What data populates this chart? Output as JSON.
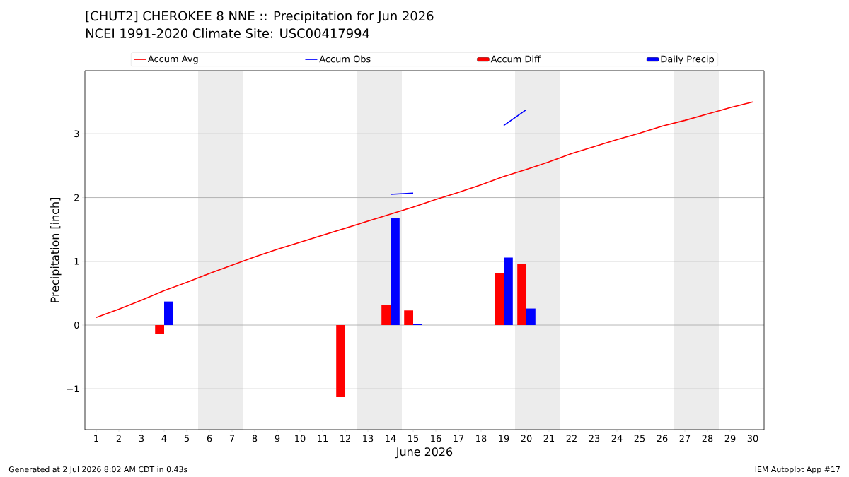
{
  "chart_data": {
    "type": "bar",
    "title": "[CHUT2] CHEROKEE 8 NNE :: Precipitation for Jun 2026",
    "subtitle": "NCEI 1991-2020 Climate Site: USC00417994",
    "xlabel": "June 2026",
    "ylabel": "Precipitation [inch]",
    "x": [
      1,
      2,
      3,
      4,
      5,
      6,
      7,
      8,
      9,
      10,
      11,
      12,
      13,
      14,
      15,
      16,
      17,
      18,
      19,
      20,
      21,
      22,
      23,
      24,
      25,
      26,
      27,
      28,
      29,
      30
    ],
    "series": [
      {
        "name": "Accum Avg",
        "type": "line",
        "color": "#ff0000",
        "values": [
          0.12,
          0.25,
          0.39,
          0.54,
          0.67,
          0.81,
          0.94,
          1.07,
          1.19,
          1.3,
          1.41,
          1.52,
          1.63,
          1.74,
          1.85,
          1.97,
          2.08,
          2.2,
          2.33,
          2.44,
          2.56,
          2.69,
          2.8,
          2.91,
          3.01,
          3.12,
          3.21,
          3.31,
          3.41,
          3.5
        ]
      },
      {
        "name": "Accum Obs",
        "type": "line",
        "color": "#0000ff",
        "values": [
          null,
          null,
          null,
          null,
          null,
          null,
          null,
          null,
          null,
          null,
          null,
          null,
          null,
          2.05,
          2.07,
          null,
          null,
          null,
          3.13,
          3.38,
          null,
          null,
          null,
          null,
          null,
          null,
          null,
          null,
          null,
          null
        ]
      },
      {
        "name": "Accum Diff",
        "color": "#ff0000",
        "values": [
          null,
          null,
          null,
          -0.14,
          null,
          null,
          null,
          null,
          null,
          null,
          null,
          -1.13,
          null,
          0.32,
          0.23,
          null,
          null,
          null,
          0.82,
          0.96,
          null,
          null,
          null,
          null,
          null,
          null,
          null,
          null,
          null,
          null
        ]
      },
      {
        "name": "Daily Precip",
        "color": "#0000ff",
        "values": [
          null,
          null,
          null,
          0.37,
          null,
          null,
          null,
          null,
          null,
          null,
          null,
          null,
          null,
          1.68,
          0.02,
          null,
          null,
          null,
          1.06,
          0.26,
          null,
          null,
          null,
          null,
          null,
          null,
          null,
          null,
          null,
          null
        ]
      }
    ],
    "xlim": [
      0.5,
      30.5
    ],
    "xticks": [
      1,
      2,
      3,
      4,
      5,
      6,
      7,
      8,
      9,
      10,
      11,
      12,
      13,
      14,
      15,
      16,
      17,
      18,
      19,
      20,
      21,
      22,
      23,
      24,
      25,
      26,
      27,
      28,
      29,
      30
    ],
    "ylim": [
      -1.64,
      3.99
    ],
    "yticks": [
      {
        "value": -1,
        "label": "−1"
      },
      0,
      1,
      2,
      3
    ],
    "bands": [
      {
        "axis": "x",
        "from": 5.5,
        "to": 7.5,
        "color": "#ececec"
      },
      {
        "axis": "x",
        "from": 12.5,
        "to": 14.5,
        "color": "#ececec"
      },
      {
        "axis": "x",
        "from": 19.5,
        "to": 21.5,
        "color": "#ececec"
      },
      {
        "axis": "x",
        "from": 26.5,
        "to": 28.5,
        "color": "#ececec"
      }
    ],
    "grid": "y",
    "legend": "top",
    "annotations": [
      "Generated at 2 Jul 2026 8:02 AM CDT in 0.43s",
      "IEM Autoplot App #17"
    ]
  }
}
